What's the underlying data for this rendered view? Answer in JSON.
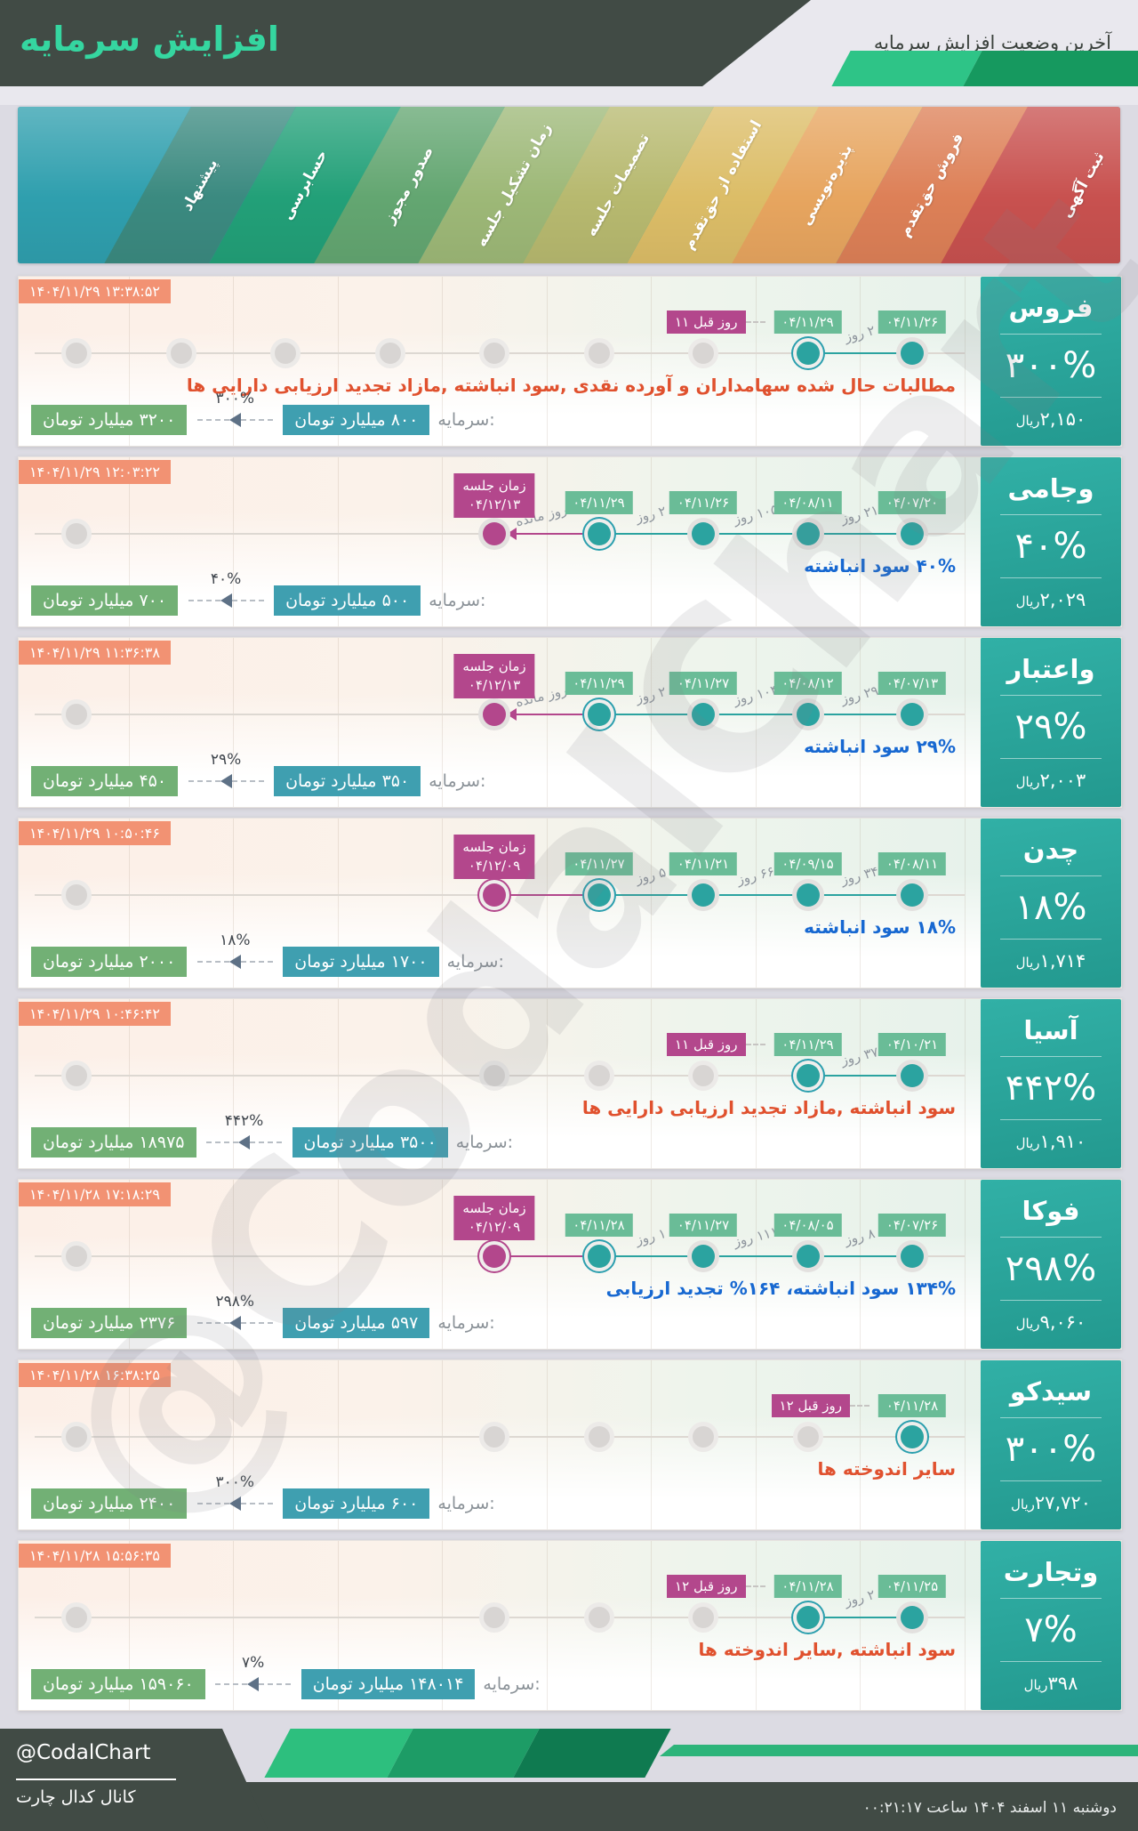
{
  "header": {
    "title": "افزایش سرمایه",
    "subtitle": "آخرین وضعیت افزایش سرمایه"
  },
  "watermark": "@CodalChart",
  "shared": {
    "capital_label": "سرمایه:"
  },
  "stages": [
    {
      "label": "ثبت آگهی",
      "color": "#c8514f"
    },
    {
      "label": "فروش حق‌تقدم",
      "color": "#dd8057"
    },
    {
      "label": "پذیره‌نویسی",
      "color": "#e7a55f"
    },
    {
      "label": "استفاده از حق‌تقدم",
      "color": "#dcbd67"
    },
    {
      "label": "تصمیمات جلسه",
      "color": "#b7b96f"
    },
    {
      "label": "زمان تشکیل جلسه",
      "color": "#9db877"
    },
    {
      "label": "صدور مجوز",
      "color": "#63a671"
    },
    {
      "label": "حسابرسی",
      "color": "#22a078"
    },
    {
      "label": "پیشنهاد",
      "color": "#3b8a80"
    },
    {
      "label": "",
      "color": "#2f9fae"
    }
  ],
  "rows": [
    {
      "name": "فروس",
      "percent": "۳۰۰%",
      "price": "۲,۱۵۰",
      "unit": "ریال",
      "timestamp": "۱۴۰۴/۱۱/۲۹ ۱۳:۳۸:۵۲",
      "desc": "مطالبات حال شده سهامداران و آورده نقدی ,سود انباشته ,مازاد تجدید ارزیابی دارایی ها",
      "desc_color": "red",
      "capital": {
        "from": "۸۰۰ میلیارد تومان",
        "to": "۳۲۰۰ میلیارد تومان",
        "pct": "۳۰۰%"
      },
      "gray": [
        1,
        2,
        3,
        4,
        5,
        6,
        7
      ],
      "dots": [
        {
          "pos": 9,
          "date": "۰۴/۱۱/۲۶"
        },
        {
          "pos": 8,
          "date": "۰۴/۱۱/۲۹",
          "current": true,
          "ago": "۱۱ روز قبل"
        }
      ],
      "segs": [
        {
          "a": 8,
          "b": 9,
          "label": "۲ روز"
        }
      ],
      "meeting": null
    },
    {
      "name": "وجامی",
      "percent": "۴۰%",
      "price": "۲,۰۲۹",
      "unit": "ریال",
      "timestamp": "۱۴۰۴/۱۱/۲۹ ۱۲:۰۳:۲۲",
      "desc": "۴۰% سود انباشته",
      "desc_color": "blue",
      "capital": {
        "from": "۵۰۰ میلیارد تومان",
        "to": "۷۰۰ میلیارد تومان",
        "pct": "۴۰%"
      },
      "gray": [
        1
      ],
      "dots": [
        {
          "pos": 9,
          "date": "۰۴/۰۷/۲۰"
        },
        {
          "pos": 8,
          "date": "۰۴/۰۸/۱۱"
        },
        {
          "pos": 7,
          "date": "۰۴/۱۱/۲۶"
        },
        {
          "pos": 6,
          "date": "۰۴/۱۱/۲۹",
          "current": true
        }
      ],
      "segs": [
        {
          "a": 8,
          "b": 9,
          "label": "۲۱ روز"
        },
        {
          "a": 7,
          "b": 8,
          "label": "۱۰۵ روز"
        },
        {
          "a": 6,
          "b": 7,
          "label": "۲ روز"
        }
      ],
      "meeting": {
        "pos": 5,
        "title": "زمان جلسه",
        "date": "۰۴/۱۲/۱۳",
        "ringed": false,
        "arrow": true,
        "label": "۲ روز مانده"
      }
    },
    {
      "name": "واعتبار",
      "percent": "۲۹%",
      "price": "۲,۰۰۳",
      "unit": "ریال",
      "timestamp": "۱۴۰۴/۱۱/۲۹ ۱۱:۳۶:۳۸",
      "desc": "۲۹% سود انباشته",
      "desc_color": "blue",
      "capital": {
        "from": "۳۵۰ میلیارد تومان",
        "to": "۴۵۰ میلیارد تومان",
        "pct": "۲۹%"
      },
      "gray": [
        1
      ],
      "dots": [
        {
          "pos": 9,
          "date": "۰۴/۰۷/۱۳"
        },
        {
          "pos": 8,
          "date": "۰۴/۰۸/۱۲"
        },
        {
          "pos": 7,
          "date": "۰۴/۱۱/۲۷"
        },
        {
          "pos": 6,
          "date": "۰۴/۱۱/۲۹",
          "current": true
        }
      ],
      "segs": [
        {
          "a": 8,
          "b": 9,
          "label": "۲۹ روز"
        },
        {
          "a": 7,
          "b": 8,
          "label": "۱۰۴ روز"
        },
        {
          "a": 6,
          "b": 7,
          "label": "۲ روز"
        }
      ],
      "meeting": {
        "pos": 5,
        "title": "زمان جلسه",
        "date": "۰۴/۱۲/۱۳",
        "ringed": false,
        "arrow": true,
        "label": "۲ روز مانده"
      }
    },
    {
      "name": "چدن",
      "percent": "۱۸%",
      "price": "۱,۷۱۴",
      "unit": "ریال",
      "timestamp": "۱۴۰۴/۱۱/۲۹ ۱۰:۵۰:۴۶",
      "desc": "۱۸% سود انباشته",
      "desc_color": "blue",
      "capital": {
        "from": "۱۷۰۰ میلیارد تومان",
        "to": "۲۰۰۰ میلیارد تومان",
        "pct": "۱۸%"
      },
      "gray": [
        1
      ],
      "dots": [
        {
          "pos": 9,
          "date": "۰۴/۰۸/۱۱"
        },
        {
          "pos": 8,
          "date": "۰۴/۰۹/۱۵"
        },
        {
          "pos": 7,
          "date": "۰۴/۱۱/۲۱"
        },
        {
          "pos": 6,
          "date": "۰۴/۱۱/۲۷",
          "current": true
        }
      ],
      "segs": [
        {
          "a": 8,
          "b": 9,
          "label": "۳۴ روز"
        },
        {
          "a": 7,
          "b": 8,
          "label": "۶۶ روز"
        },
        {
          "a": 6,
          "b": 7,
          "label": "۵ روز"
        }
      ],
      "meeting": {
        "pos": 5,
        "title": "زمان جلسه",
        "date": "۰۴/۱۲/۰۹",
        "ringed": true,
        "arrow": false,
        "label": null
      }
    },
    {
      "name": "آسیا",
      "percent": "۴۴۲%",
      "price": "۱,۹۱۰",
      "unit": "ریال",
      "timestamp": "۱۴۰۴/۱۱/۲۹ ۱۰:۴۶:۴۲",
      "desc": "سود انباشته ,مازاد تجدید ارزیابی دارایی ها",
      "desc_color": "red",
      "capital": {
        "from": "۳۵۰۰ میلیارد تومان",
        "to": "۱۸۹۷۵ میلیارد تومان",
        "pct": "۴۴۲%"
      },
      "gray": [
        1,
        5,
        6,
        7
      ],
      "dots": [
        {
          "pos": 9,
          "date": "۰۴/۱۰/۲۱"
        },
        {
          "pos": 8,
          "date": "۰۴/۱۱/۲۹",
          "current": true,
          "ago": "۱۱ روز قبل"
        }
      ],
      "segs": [
        {
          "a": 8,
          "b": 9,
          "label": "۳۷ روز"
        }
      ],
      "meeting": null
    },
    {
      "name": "فوکا",
      "percent": "۲۹۸%",
      "price": "۹,۰۶۰",
      "unit": "ریال",
      "timestamp": "۱۴۰۴/۱۱/۲۸ ۱۷:۱۸:۲۹",
      "desc": "۱۳۴% سود انباشته، ۱۶۴% تجدید ارزیابی",
      "desc_color": "blue",
      "capital": {
        "from": "۵۹۷ میلیارد تومان",
        "to": "۲۳۷۶ میلیارد تومان",
        "pct": "۲۹۸%"
      },
      "gray": [
        1
      ],
      "dots": [
        {
          "pos": 9,
          "date": "۰۴/۰۷/۲۶"
        },
        {
          "pos": 8,
          "date": "۰۴/۰۸/۰۵"
        },
        {
          "pos": 7,
          "date": "۰۴/۱۱/۲۷"
        },
        {
          "pos": 6,
          "date": "۰۴/۱۱/۲۸",
          "current": true
        }
      ],
      "segs": [
        {
          "a": 8,
          "b": 9,
          "label": "۸ روز"
        },
        {
          "a": 7,
          "b": 8,
          "label": "۱۱۱ روز"
        },
        {
          "a": 6,
          "b": 7,
          "label": "۱ روز"
        }
      ],
      "meeting": {
        "pos": 5,
        "title": "زمان جلسه",
        "date": "۰۴/۱۲/۰۹",
        "ringed": true,
        "arrow": false,
        "label": null
      }
    },
    {
      "name": "سیدکو",
      "percent": "۳۰۰%",
      "price": "۲۷,۷۲۰",
      "unit": "ریال",
      "timestamp": "۱۴۰۴/۱۱/۲۸ ۱۶:۳۸:۲۵",
      "desc": "سایر اندوخته ها",
      "desc_color": "red",
      "capital": {
        "from": "۶۰۰ میلیارد تومان",
        "to": "۲۴۰۰ میلیارد تومان",
        "pct": "۳۰۰%"
      },
      "gray": [
        1,
        5,
        6,
        7,
        8
      ],
      "dots": [
        {
          "pos": 9,
          "date": "۰۴/۱۱/۲۸",
          "current": true,
          "ago": "۱۲ روز قبل"
        }
      ],
      "segs": [],
      "meeting": null
    },
    {
      "name": "وتجارت",
      "percent": "۷%",
      "price": "۳۹۸",
      "unit": "ریال",
      "timestamp": "۱۴۰۴/۱۱/۲۸ ۱۵:۵۶:۳۵",
      "desc": "سود انباشته ,سایر اندوخته ها",
      "desc_color": "red",
      "capital": {
        "from": "۱۴۸۰۱۴ میلیارد تومان",
        "to": "۱۵۹۰۶۰ میلیارد تومان",
        "pct": "۷%"
      },
      "gray": [
        1,
        5,
        6,
        7
      ],
      "dots": [
        {
          "pos": 9,
          "date": "۰۴/۱۱/۲۵"
        },
        {
          "pos": 8,
          "date": "۰۴/۱۱/۲۸",
          "current": true,
          "ago": "۱۲ روز قبل"
        }
      ],
      "segs": [
        {
          "a": 8,
          "b": 9,
          "label": "۲ روز"
        }
      ],
      "meeting": null
    }
  ],
  "footer": {
    "handle": "@CodalChart",
    "channel": "کانال کدال چارت",
    "datetime": "دوشنبه ۱۱ اسفند ۱۴۰۴ ساعت ۰۰:۲۱:۱۷"
  }
}
